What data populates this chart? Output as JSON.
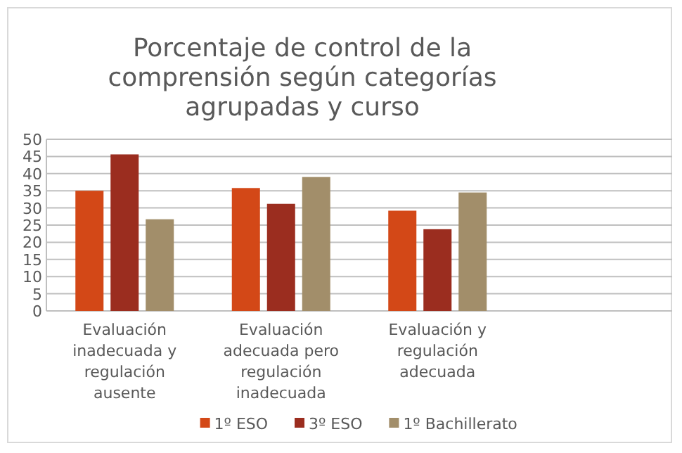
{
  "chart_data": {
    "type": "bar",
    "title": "Porcentaje de control de la comprensión según categorías agrupadas y curso",
    "categories": [
      "Evaluación inadecuada y regulación ausente",
      "Evaluación adecuada pero regulación inadecuada",
      "Evaluación y regulación adecuada",
      null
    ],
    "series": [
      {
        "name": "1º ESO",
        "color": "#d34817",
        "values": [
          35,
          35.8,
          29.2,
          null
        ]
      },
      {
        "name": "3º ESO",
        "color": "#9b2d1f",
        "values": [
          45.6,
          31.2,
          23.8,
          null
        ]
      },
      {
        "name": "1º Bachillerato",
        "color": "#a28e6a",
        "values": [
          26.7,
          39,
          34.5,
          null
        ]
      }
    ],
    "ylim": [
      0,
      50
    ],
    "yticks": [
      0,
      5,
      10,
      15,
      20,
      25,
      30,
      35,
      40,
      45,
      50
    ],
    "grid": "y",
    "legend": "bottom"
  }
}
